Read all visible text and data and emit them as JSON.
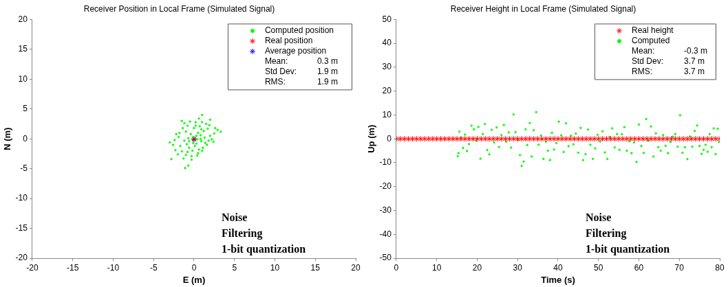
{
  "chart_data": [
    {
      "type": "scatter",
      "title": "Receiver Position in Local Frame (Simulated Signal)",
      "xlabel": "E (m)",
      "ylabel": "N (m)",
      "xlim": [
        -20,
        20
      ],
      "ylim": [
        -20,
        20
      ],
      "xticks": [
        -20,
        -15,
        -10,
        -5,
        0,
        5,
        10,
        15,
        20
      ],
      "yticks": [
        -20,
        -15,
        -10,
        -5,
        0,
        5,
        10,
        15,
        20
      ],
      "grid": false,
      "legend": "top right",
      "annotations": [
        "Mean:\t0.3 m",
        "Std Dev:\t1.9 m",
        "RMS:\t1.9 m",
        "Noise\nFiltering\n1-bit quantization"
      ],
      "series": [
        {
          "name": "Computed position",
          "color": "#00ff00",
          "marker": "circle",
          "x": [
            -2.8,
            -1.1,
            -0.7,
            -3.0,
            3.3,
            1.0,
            0.6,
            2.0,
            2.6,
            2.4,
            -1.5,
            -0.3,
            -2.3,
            -1.0,
            0.4,
            1.0,
            1.6,
            2.0,
            1.5,
            0.2,
            -0.8,
            -1.8,
            -2.4,
            -1.7,
            -0.6,
            0.3,
            0.8,
            1.2,
            -0.4,
            -1.2,
            0.0,
            0.9,
            -0.2,
            1.8,
            -1.4,
            0.5,
            -0.9,
            1.3,
            -0.5,
            0.7,
            2.9,
            -2.0,
            -1.3,
            0.1,
            1.1,
            -2.6,
            -0.1,
            0.4,
            -0.7,
            0.6,
            1.7,
            -1.9,
            0.2,
            2.2,
            -1.0,
            -0.3,
            0.9,
            -1.5,
            1.4,
            -2.2,
            0.3,
            -0.6,
            1.0,
            -1.2,
            0.5,
            2.5,
            -0.8,
            1.9,
            -0.1,
            0.8
          ],
          "values": [
            -3.4,
            -4.9,
            -4.5,
            -0.6,
            1.2,
            4.0,
            3.4,
            3.2,
            1.8,
            -0.5,
            3.0,
            -3.5,
            -1.9,
            -2.7,
            -2.8,
            -2.0,
            -1.0,
            0.5,
            2.5,
            2.8,
            2.2,
            1.0,
            -0.2,
            -1.2,
            -1.5,
            -0.8,
            0.6,
            1.3,
            0.8,
            -0.3,
            1.8,
            -0.4,
            -2.0,
            -0.3,
            1.8,
            1.0,
            -0.9,
            0.2,
            2.9,
            2.1,
            1.5,
            -2.6,
            -3.3,
            -1.2,
            -1.5,
            -1.0,
            0.3,
            -0.1,
            0.1,
            -1.8,
            1.7,
            0.3,
            2.2,
            -0.1,
            1.2,
            -2.9,
            1.6,
            -2.1,
            -0.7,
            0.8,
            0.5,
            -0.4,
            2.8,
            2.6,
            -2.4,
            0.9,
            -2.2,
            2.3,
            -0.7,
            0.0
          ]
        },
        {
          "name": "Real position",
          "color": "#ff0000",
          "marker": "cross",
          "x": [
            0
          ],
          "values": [
            0
          ]
        },
        {
          "name": "Average position",
          "color": "#0000ff",
          "marker": "cross",
          "x": [
            0
          ],
          "values": [
            -0.1
          ]
        }
      ]
    },
    {
      "type": "scatter",
      "title": "Receiver Height in Local Frame (Simulated Signal)",
      "xlabel": "Time (s)",
      "ylabel": "Up (m)",
      "xlim": [
        0,
        80
      ],
      "ylim": [
        -50,
        50
      ],
      "xticks": [
        0,
        10,
        20,
        30,
        40,
        50,
        60,
        70,
        80
      ],
      "yticks": [
        -50,
        -40,
        -30,
        -20,
        -10,
        0,
        10,
        20,
        30,
        40,
        50
      ],
      "grid": false,
      "legend": "top right",
      "annotations": [
        "Mean:\t-0.3 m",
        "Std Dev:\t3.7 m",
        "RMS:\t3.7 m",
        "Noise\nFiltering\n1-bit quantization"
      ],
      "series": [
        {
          "name": "Real height",
          "color": "#ff0000",
          "marker": "cross",
          "x": [
            0,
            1,
            2,
            3,
            4,
            5,
            6,
            7,
            8,
            9,
            10,
            11,
            12,
            13,
            14,
            15,
            16,
            17,
            18,
            19,
            20,
            21,
            22,
            23,
            24,
            25,
            26,
            27,
            28,
            29,
            30,
            31,
            32,
            33,
            34,
            35,
            36,
            37,
            38,
            39,
            40,
            41,
            42,
            43,
            44,
            45,
            46,
            47,
            48,
            49,
            50,
            51,
            52,
            53,
            54,
            55,
            56,
            57,
            58,
            59,
            60,
            61,
            62,
            63,
            64,
            65,
            66,
            67,
            68,
            69,
            70,
            71,
            72,
            73,
            74,
            75,
            76,
            77,
            78,
            79,
            80
          ],
          "values": [
            0,
            0,
            0,
            0,
            0,
            0,
            0,
            0,
            0,
            0,
            0,
            0,
            0,
            0,
            0,
            0,
            0,
            0,
            0,
            0,
            0,
            0,
            0,
            0,
            0,
            0,
            0,
            0,
            0,
            0,
            0,
            0,
            0,
            0,
            0,
            0,
            0,
            0,
            0,
            0,
            0,
            0,
            0,
            0,
            0,
            0,
            0,
            0,
            0,
            0,
            0,
            0,
            0,
            0,
            0,
            0,
            0,
            0,
            0,
            0,
            0,
            0,
            0,
            0,
            0,
            0,
            0,
            0,
            0,
            0,
            0,
            0,
            0,
            0,
            0,
            0,
            0,
            0,
            0,
            0,
            0
          ]
        },
        {
          "name": "Computed",
          "color": "#00ff00",
          "marker": "circle",
          "x": [
            15.2,
            15.4,
            15.6,
            16.0,
            16.5,
            17.0,
            17.5,
            18.0,
            18.6,
            19.2,
            19.8,
            20.3,
            20.8,
            21.4,
            21.9,
            22.5,
            23.0,
            23.6,
            24.2,
            24.8,
            25.4,
            26.0,
            26.6,
            27.2,
            27.8,
            28.4,
            29.0,
            29.5,
            30.1,
            30.6,
            31.0,
            31.5,
            32.0,
            32.4,
            33.0,
            33.5,
            34.0,
            34.6,
            35.2,
            35.8,
            36.4,
            37.0,
            37.5,
            38.0,
            38.5,
            39.0,
            39.6,
            40.2,
            40.8,
            41.4,
            42.0,
            42.6,
            43.2,
            43.8,
            44.4,
            45.0,
            45.6,
            46.2,
            46.8,
            47.4,
            48.0,
            48.6,
            49.2,
            49.8,
            50.4,
            51.0,
            51.6,
            52.2,
            52.8,
            53.4,
            54.0,
            54.6,
            55.2,
            55.8,
            56.4,
            57.0,
            57.6,
            58.2,
            58.8,
            59.4,
            60.0,
            60.6,
            61.2,
            61.8,
            62.4,
            63.0,
            63.6,
            64.2,
            64.8,
            65.4,
            66.0,
            66.6,
            67.2,
            67.8,
            68.4,
            69.0,
            69.6,
            70.2,
            70.8,
            71.4,
            72.0,
            72.6,
            73.2,
            73.8,
            74.4,
            75.0,
            75.5,
            76.0,
            76.5,
            77.0,
            77.5,
            78.0,
            78.5,
            79.0,
            79.5,
            79.8
          ],
          "values": [
            -7.3,
            -6.0,
            3.0,
            0.5,
            -3.8,
            1.8,
            -5.1,
            -2.2,
            5.5,
            4.0,
            -0.8,
            5.0,
            -8.3,
            2.0,
            6.2,
            -4.7,
            -6.5,
            3.8,
            -1.5,
            4.8,
            -3.4,
            1.6,
            5.8,
            -1.2,
            2.7,
            -3.7,
            10.2,
            2.8,
            -0.5,
            -6.8,
            -11.3,
            -9.5,
            4.0,
            -2.6,
            6.6,
            -7.4,
            3.6,
            11.2,
            -2.5,
            1.4,
            -8.4,
            -1.2,
            -5.0,
            -8.9,
            2.5,
            -4.5,
            -1.8,
            7.2,
            1.5,
            -5.5,
            6.5,
            -3.1,
            1.3,
            -2.3,
            2.2,
            -5.8,
            4.6,
            -8.9,
            -6.4,
            3.9,
            -2.5,
            -8.4,
            -4.0,
            1.7,
            -1.1,
            3.1,
            -5.7,
            -8.4,
            0.8,
            4.4,
            -3.6,
            2.0,
            -4.6,
            1.9,
            4.9,
            -5.0,
            -1.0,
            -6.0,
            -1.5,
            -9.7,
            6.0,
            -3.0,
            -5.9,
            8.3,
            -0.8,
            5.2,
            -7.4,
            2.3,
            -3.5,
            -5.0,
            1.6,
            -2.9,
            -6.0,
            -1.3,
            0.9,
            2.0,
            -3.3,
            9.9,
            -5.8,
            -3.5,
            -8.5,
            1.0,
            -3.3,
            3.3,
            5.6,
            -3.0,
            -6.3,
            -4.6,
            -2.5,
            -5.4,
            2.0,
            -3.5,
            4.4,
            -6.4,
            4.2,
            -1.3
          ]
        }
      ]
    }
  ]
}
